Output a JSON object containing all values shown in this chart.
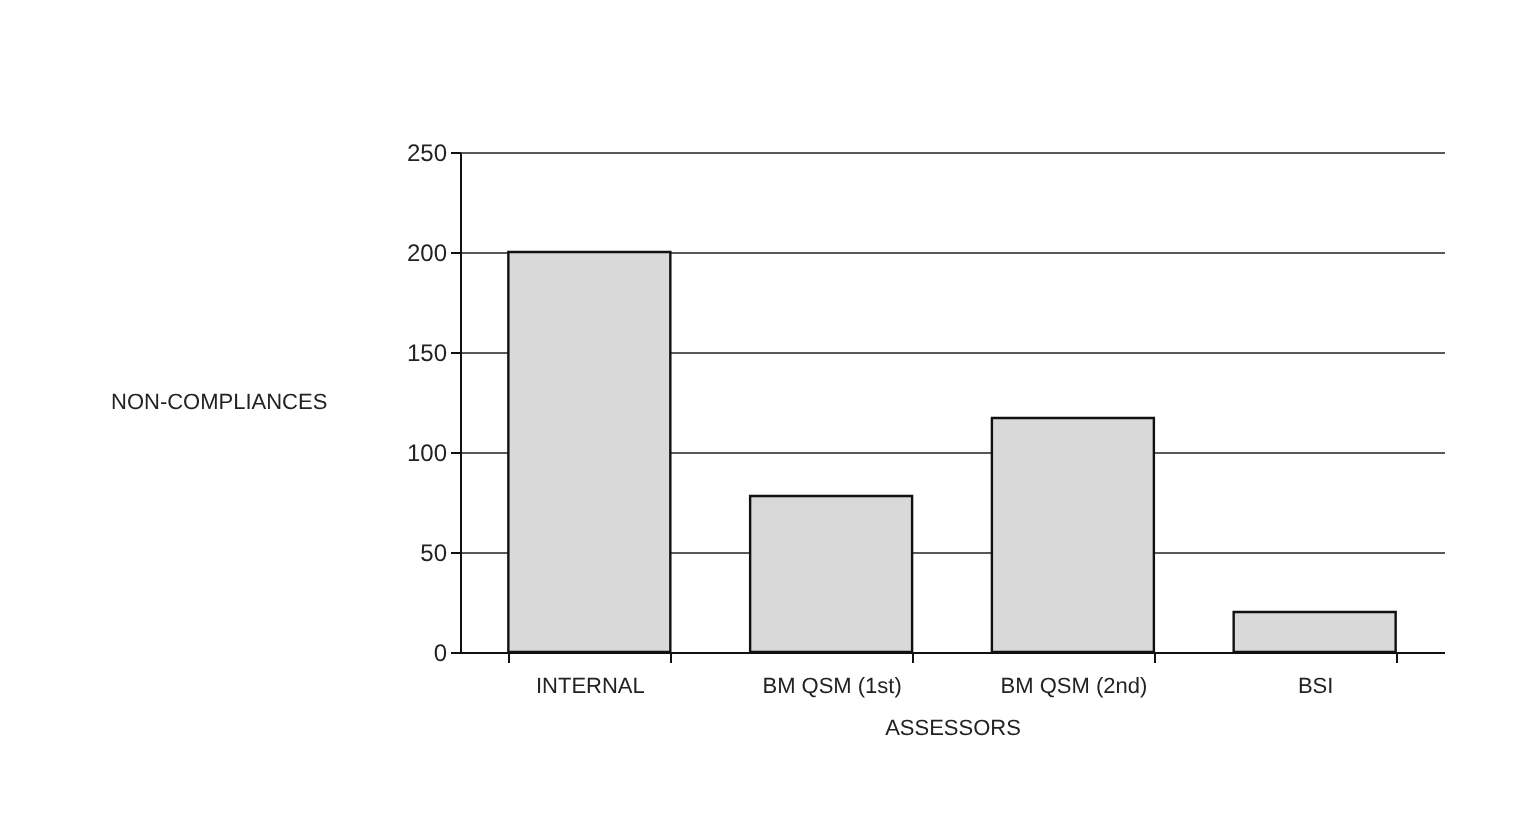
{
  "chart_data": {
    "type": "bar",
    "xlabel": "ASSESSORS",
    "ylabel": "NON-COMPLIANCES",
    "categories": [
      "INTERNAL",
      "BM QSM (1st)",
      "BM QSM (2nd)",
      "BSI"
    ],
    "values": [
      200,
      78,
      117,
      20
    ],
    "color": "#d9d9d9",
    "ylim": [
      0,
      250
    ],
    "yticks": [
      0,
      50,
      100,
      150,
      200,
      250
    ],
    "grid": "y"
  }
}
